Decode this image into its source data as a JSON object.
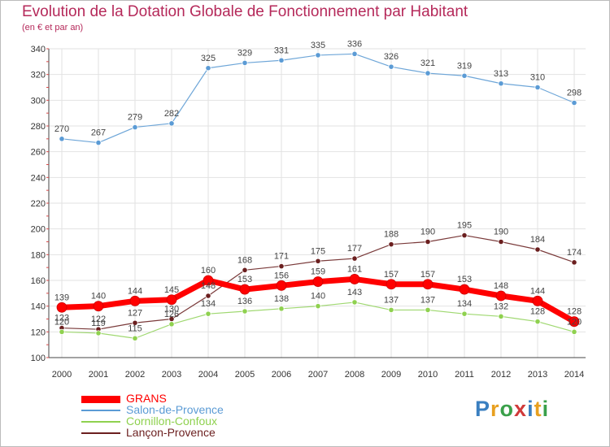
{
  "chart_data": {
    "type": "line",
    "title": "Evolution de la Dotation Globale de Fonctionnement par Habitant",
    "subtitle": "(en € et par an)",
    "x": [
      "2000",
      "2001",
      "2002",
      "2003",
      "2004",
      "2005",
      "2006",
      "2007",
      "2008",
      "2009",
      "2010",
      "2011",
      "2012",
      "2013",
      "2014"
    ],
    "ylim": [
      100,
      340
    ],
    "yticks": [
      100,
      120,
      140,
      160,
      180,
      200,
      220,
      240,
      260,
      280,
      300,
      320,
      340
    ],
    "grid": true,
    "legend_position": "bottom-left",
    "series": [
      {
        "name": "Salon-de-Provence",
        "color": "#5b9bd5",
        "line": "#6ea6d8",
        "width": 1.2,
        "values": [
          270,
          267,
          279,
          282,
          325,
          329,
          331,
          335,
          336,
          326,
          321,
          319,
          313,
          310,
          298
        ]
      },
      {
        "name": "Lançon-Provence",
        "color": "#6b1f1f",
        "line": "#7a3a3a",
        "width": 1.2,
        "values": [
          123,
          122,
          127,
          130,
          148,
          168,
          171,
          175,
          177,
          188,
          190,
          195,
          190,
          184,
          174
        ]
      },
      {
        "name": "Cornillon-Confoux",
        "color": "#8fd14f",
        "line": "#9fd870",
        "width": 1.2,
        "values": [
          120,
          119,
          115,
          126,
          134,
          136,
          138,
          140,
          143,
          137,
          137,
          134,
          132,
          128,
          120
        ]
      },
      {
        "name": "GRANS",
        "color": "#ff0000",
        "line": "#ff0000",
        "width": 7,
        "values": [
          139,
          140,
          144,
          145,
          160,
          153,
          156,
          159,
          161,
          157,
          157,
          153,
          148,
          144,
          128
        ]
      }
    ],
    "data_labels": {
      "Salon-de-Provence": [
        "270",
        "267",
        "279",
        "282",
        "325",
        "329",
        "331",
        "335",
        "336",
        "326",
        "321",
        "319",
        "313",
        "310",
        "298"
      ],
      "Lançon-Provence": [
        "123",
        "122",
        "127",
        "130",
        "148",
        "168",
        "171",
        "175",
        "177",
        "188",
        "190",
        "195",
        "190",
        "184",
        "174"
      ],
      "Cornillon-Confoux": [
        "120",
        "119",
        "115",
        "126",
        "134",
        "136",
        "138",
        "140",
        "143",
        "137",
        "137",
        "134",
        "132",
        "128",
        "120"
      ],
      "GRANS": [
        "139",
        "140",
        "144",
        "145",
        "160",
        "153",
        "156",
        "159",
        "161",
        "157",
        "157",
        "153",
        "148",
        "144",
        "128"
      ]
    }
  },
  "legend": {
    "items": [
      {
        "label": "GRANS",
        "color": "#ff0000",
        "thick": true
      },
      {
        "label": "Salon-de-Provence",
        "color": "#5b9bd5",
        "thick": false
      },
      {
        "label": "Cornillon-Confoux",
        "color": "#8fd14f",
        "thick": false
      },
      {
        "label": "Lançon-Provence",
        "color": "#6b1f1f",
        "thick": false
      }
    ]
  },
  "brand": {
    "letters": [
      "P",
      "r",
      "o",
      "x",
      "i",
      "t",
      "i"
    ],
    "colors": [
      "#3a7fc0",
      "#e8a020",
      "#3aa04a",
      "#d03a3a",
      "#3a7fc0",
      "#e8a020",
      "#3aa04a"
    ]
  }
}
